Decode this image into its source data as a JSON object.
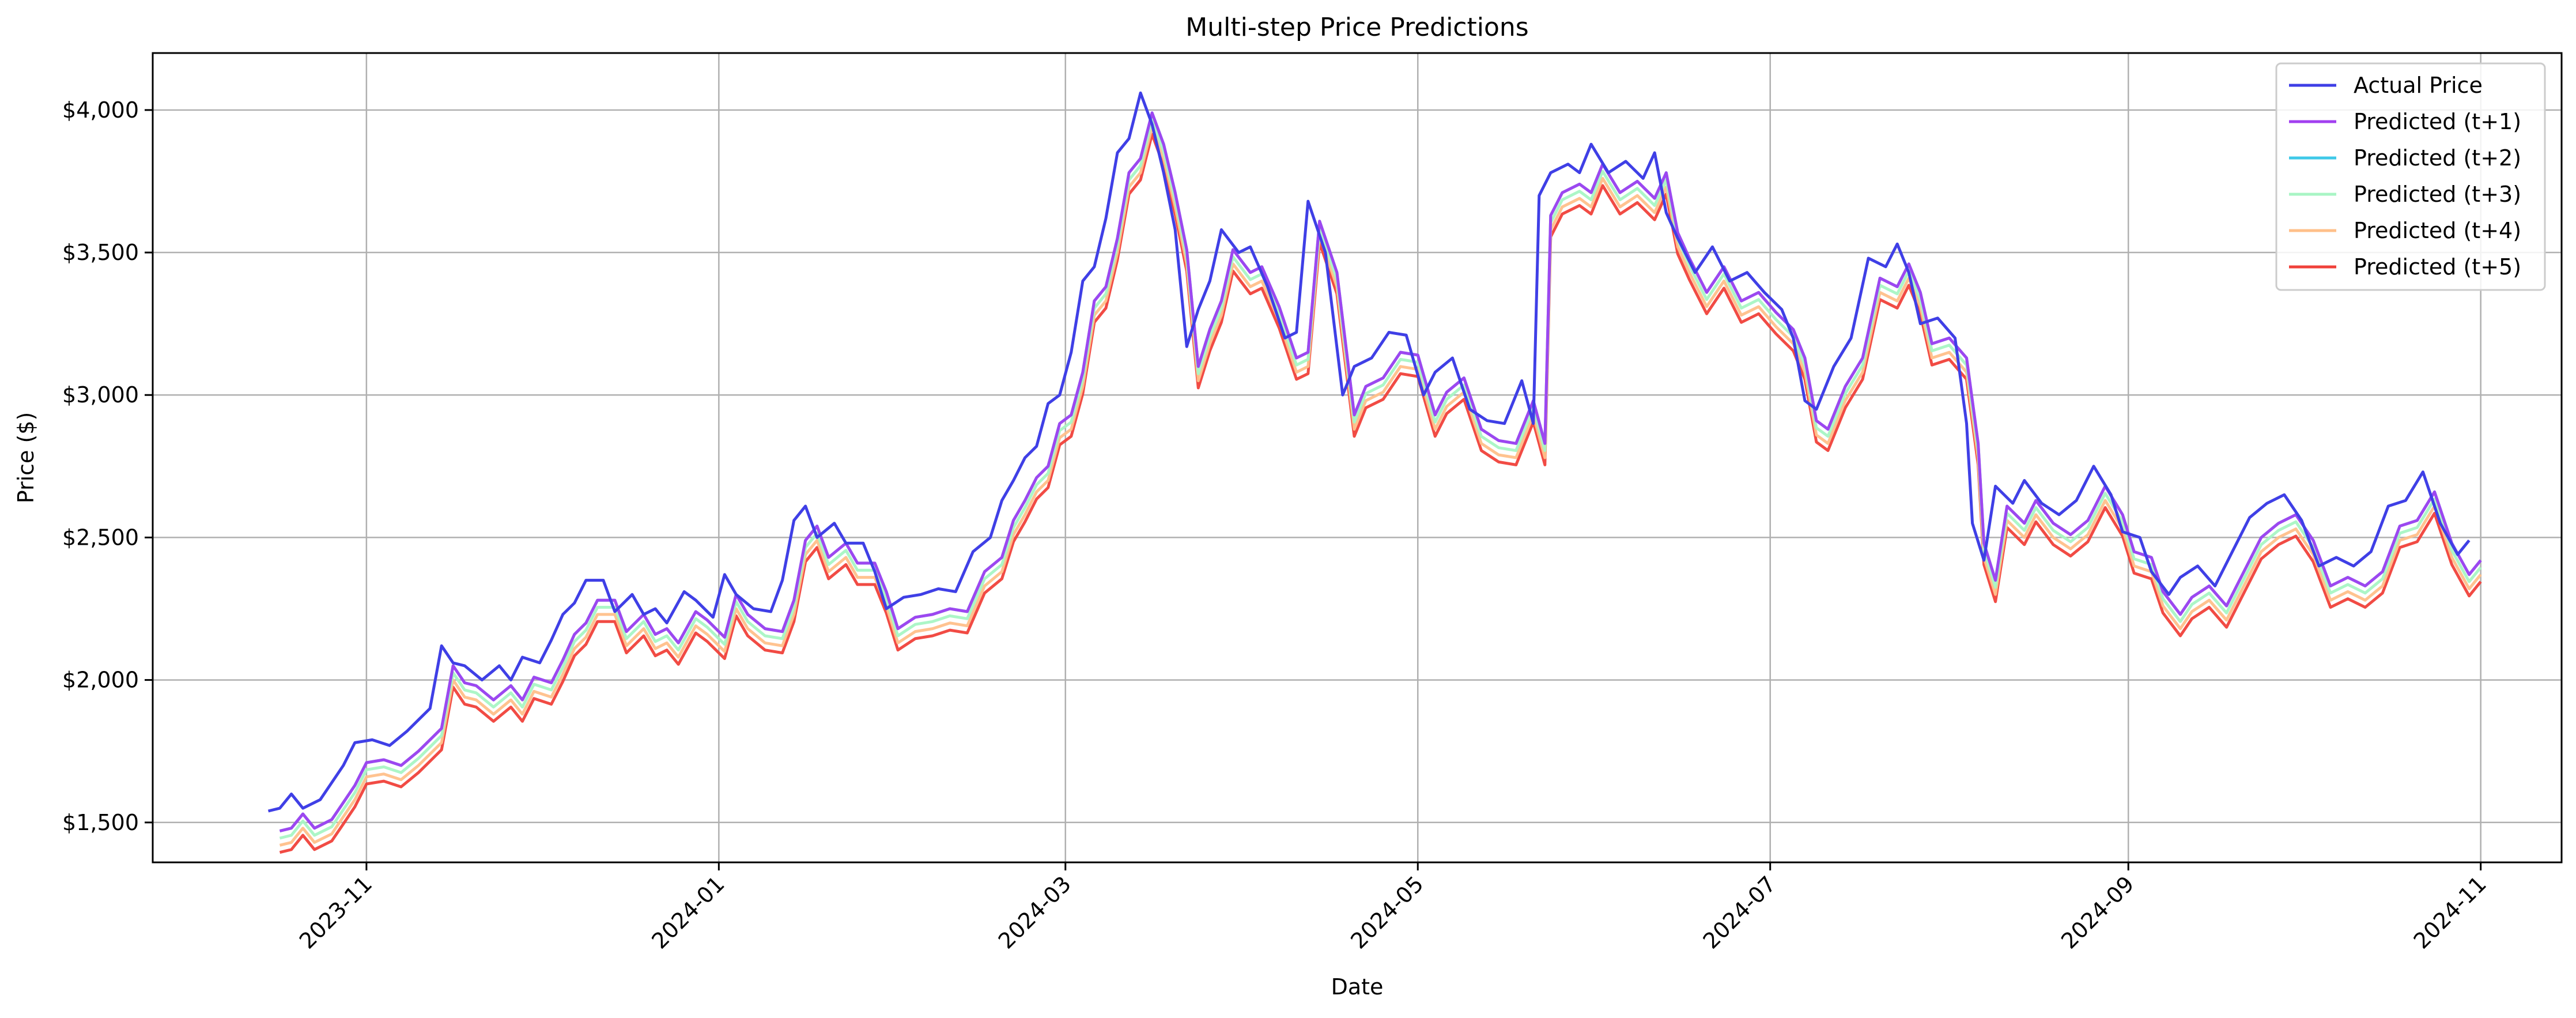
{
  "chart_data": {
    "type": "line",
    "title": "Multi-step Price Predictions",
    "xlabel": "Date",
    "ylabel": "Price ($)",
    "x_range": [
      "2023-09-25",
      "2024-11-15"
    ],
    "ylim": [
      1360,
      4200
    ],
    "y_ticks": [
      1500,
      2000,
      2500,
      3000,
      3500,
      4000
    ],
    "y_tick_labels": [
      "$1,500",
      "$2,000",
      "$2,500",
      "$3,000",
      "$3,500",
      "$4,000"
    ],
    "x_ticks": [
      "2023-11-01",
      "2024-01-01",
      "2024-03-01",
      "2024-05-01",
      "2024-07-01",
      "2024-09-01",
      "2024-11-01"
    ],
    "x_tick_labels": [
      "2023-11",
      "2024-01",
      "2024-03",
      "2024-05",
      "2024-07",
      "2024-09",
      "2024-11"
    ],
    "grid": true,
    "legend_position": "top-right",
    "actual": {
      "name": "Actual Price",
      "color": "#3f3fe6",
      "points": [
        [
          "2023-10-15",
          1540
        ],
        [
          "2023-10-17",
          1550
        ],
        [
          "2023-10-19",
          1600
        ],
        [
          "2023-10-21",
          1550
        ],
        [
          "2023-10-24",
          1580
        ],
        [
          "2023-10-26",
          1640
        ],
        [
          "2023-10-28",
          1700
        ],
        [
          "2023-10-30",
          1780
        ],
        [
          "2023-11-02",
          1790
        ],
        [
          "2023-11-05",
          1770
        ],
        [
          "2023-11-08",
          1820
        ],
        [
          "2023-11-10",
          1860
        ],
        [
          "2023-11-12",
          1900
        ],
        [
          "2023-11-14",
          2120
        ],
        [
          "2023-11-16",
          2060
        ],
        [
          "2023-11-18",
          2050
        ],
        [
          "2023-11-21",
          2000
        ],
        [
          "2023-11-24",
          2050
        ],
        [
          "2023-11-26",
          2000
        ],
        [
          "2023-11-28",
          2080
        ],
        [
          "2023-12-01",
          2060
        ],
        [
          "2023-12-03",
          2140
        ],
        [
          "2023-12-05",
          2230
        ],
        [
          "2023-12-07",
          2270
        ],
        [
          "2023-12-09",
          2350
        ],
        [
          "2023-12-12",
          2350
        ],
        [
          "2023-12-14",
          2240
        ],
        [
          "2023-12-17",
          2300
        ],
        [
          "2023-12-19",
          2230
        ],
        [
          "2023-12-21",
          2250
        ],
        [
          "2023-12-23",
          2200
        ],
        [
          "2023-12-26",
          2310
        ],
        [
          "2023-12-28",
          2280
        ],
        [
          "2023-12-31",
          2220
        ],
        [
          "2024-01-02",
          2370
        ],
        [
          "2024-01-04",
          2300
        ],
        [
          "2024-01-07",
          2250
        ],
        [
          "2024-01-10",
          2240
        ],
        [
          "2024-01-12",
          2350
        ],
        [
          "2024-01-14",
          2560
        ],
        [
          "2024-01-16",
          2610
        ],
        [
          "2024-01-18",
          2500
        ],
        [
          "2024-01-21",
          2550
        ],
        [
          "2024-01-23",
          2480
        ],
        [
          "2024-01-26",
          2480
        ],
        [
          "2024-01-28",
          2380
        ],
        [
          "2024-01-30",
          2250
        ],
        [
          "2024-02-02",
          2290
        ],
        [
          "2024-02-05",
          2300
        ],
        [
          "2024-02-08",
          2320
        ],
        [
          "2024-02-11",
          2310
        ],
        [
          "2024-02-14",
          2450
        ],
        [
          "2024-02-17",
          2500
        ],
        [
          "2024-02-19",
          2630
        ],
        [
          "2024-02-21",
          2700
        ],
        [
          "2024-02-23",
          2780
        ],
        [
          "2024-02-25",
          2820
        ],
        [
          "2024-02-27",
          2970
        ],
        [
          "2024-02-29",
          3000
        ],
        [
          "2024-03-02",
          3150
        ],
        [
          "2024-03-04",
          3400
        ],
        [
          "2024-03-06",
          3450
        ],
        [
          "2024-03-08",
          3620
        ],
        [
          "2024-03-10",
          3850
        ],
        [
          "2024-03-12",
          3900
        ],
        [
          "2024-03-14",
          4060
        ],
        [
          "2024-03-16",
          3950
        ],
        [
          "2024-03-18",
          3780
        ],
        [
          "2024-03-20",
          3580
        ],
        [
          "2024-03-22",
          3170
        ],
        [
          "2024-03-24",
          3300
        ],
        [
          "2024-03-26",
          3400
        ],
        [
          "2024-03-28",
          3580
        ],
        [
          "2024-03-31",
          3500
        ],
        [
          "2024-04-02",
          3520
        ],
        [
          "2024-04-05",
          3380
        ],
        [
          "2024-04-08",
          3200
        ],
        [
          "2024-04-10",
          3220
        ],
        [
          "2024-04-12",
          3680
        ],
        [
          "2024-04-15",
          3500
        ],
        [
          "2024-04-18",
          3000
        ],
        [
          "2024-04-20",
          3100
        ],
        [
          "2024-04-23",
          3130
        ],
        [
          "2024-04-26",
          3220
        ],
        [
          "2024-04-29",
          3210
        ],
        [
          "2024-05-02",
          3000
        ],
        [
          "2024-05-04",
          3080
        ],
        [
          "2024-05-07",
          3130
        ],
        [
          "2024-05-10",
          2950
        ],
        [
          "2024-05-13",
          2910
        ],
        [
          "2024-05-16",
          2900
        ],
        [
          "2024-05-19",
          3050
        ],
        [
          "2024-05-21",
          2900
        ],
        [
          "2024-05-22",
          3700
        ],
        [
          "2024-05-24",
          3780
        ],
        [
          "2024-05-27",
          3810
        ],
        [
          "2024-05-29",
          3780
        ],
        [
          "2024-05-31",
          3880
        ],
        [
          "2024-06-03",
          3780
        ],
        [
          "2024-06-06",
          3820
        ],
        [
          "2024-06-09",
          3760
        ],
        [
          "2024-06-11",
          3850
        ],
        [
          "2024-06-13",
          3640
        ],
        [
          "2024-06-15",
          3550
        ],
        [
          "2024-06-18",
          3430
        ],
        [
          "2024-06-21",
          3520
        ],
        [
          "2024-06-24",
          3400
        ],
        [
          "2024-06-27",
          3430
        ],
        [
          "2024-06-30",
          3360
        ],
        [
          "2024-07-03",
          3300
        ],
        [
          "2024-07-05",
          3200
        ],
        [
          "2024-07-07",
          2980
        ],
        [
          "2024-07-09",
          2950
        ],
        [
          "2024-07-12",
          3100
        ],
        [
          "2024-07-15",
          3200
        ],
        [
          "2024-07-18",
          3480
        ],
        [
          "2024-07-21",
          3450
        ],
        [
          "2024-07-23",
          3530
        ],
        [
          "2024-07-25",
          3430
        ],
        [
          "2024-07-27",
          3250
        ],
        [
          "2024-07-30",
          3270
        ],
        [
          "2024-08-02",
          3200
        ],
        [
          "2024-08-04",
          2900
        ],
        [
          "2024-08-05",
          2550
        ],
        [
          "2024-08-07",
          2420
        ],
        [
          "2024-08-09",
          2680
        ],
        [
          "2024-08-12",
          2620
        ],
        [
          "2024-08-14",
          2700
        ],
        [
          "2024-08-17",
          2620
        ],
        [
          "2024-08-20",
          2580
        ],
        [
          "2024-08-23",
          2630
        ],
        [
          "2024-08-26",
          2750
        ],
        [
          "2024-08-29",
          2650
        ],
        [
          "2024-08-31",
          2520
        ],
        [
          "2024-09-03",
          2500
        ],
        [
          "2024-09-05",
          2380
        ],
        [
          "2024-09-08",
          2300
        ],
        [
          "2024-09-10",
          2360
        ],
        [
          "2024-09-13",
          2400
        ],
        [
          "2024-09-16",
          2330
        ],
        [
          "2024-09-19",
          2450
        ],
        [
          "2024-09-22",
          2570
        ],
        [
          "2024-09-25",
          2620
        ],
        [
          "2024-09-28",
          2650
        ],
        [
          "2024-10-01",
          2560
        ],
        [
          "2024-10-04",
          2400
        ],
        [
          "2024-10-07",
          2430
        ],
        [
          "2024-10-10",
          2400
        ],
        [
          "2024-10-13",
          2450
        ],
        [
          "2024-10-16",
          2610
        ],
        [
          "2024-10-19",
          2630
        ],
        [
          "2024-10-22",
          2730
        ],
        [
          "2024-10-25",
          2550
        ],
        [
          "2024-10-28",
          2440
        ],
        [
          "2024-10-30",
          2490
        ]
      ]
    },
    "predicted_series": [
      {
        "name": "Predicted (t+1)",
        "color": "#a23ff0",
        "offset": -70
      },
      {
        "name": "Predicted (t+2)",
        "color": "#3fc9e8",
        "offset": -70
      },
      {
        "name": "Predicted (t+3)",
        "color": "#a8f5c4",
        "offset": -95
      },
      {
        "name": "Predicted (t+4)",
        "color": "#ffc08a",
        "offset": -120
      },
      {
        "name": "Predicted (t+5)",
        "color": "#f0413a",
        "offset": -145
      }
    ],
    "predicted_lag_days": 2
  }
}
